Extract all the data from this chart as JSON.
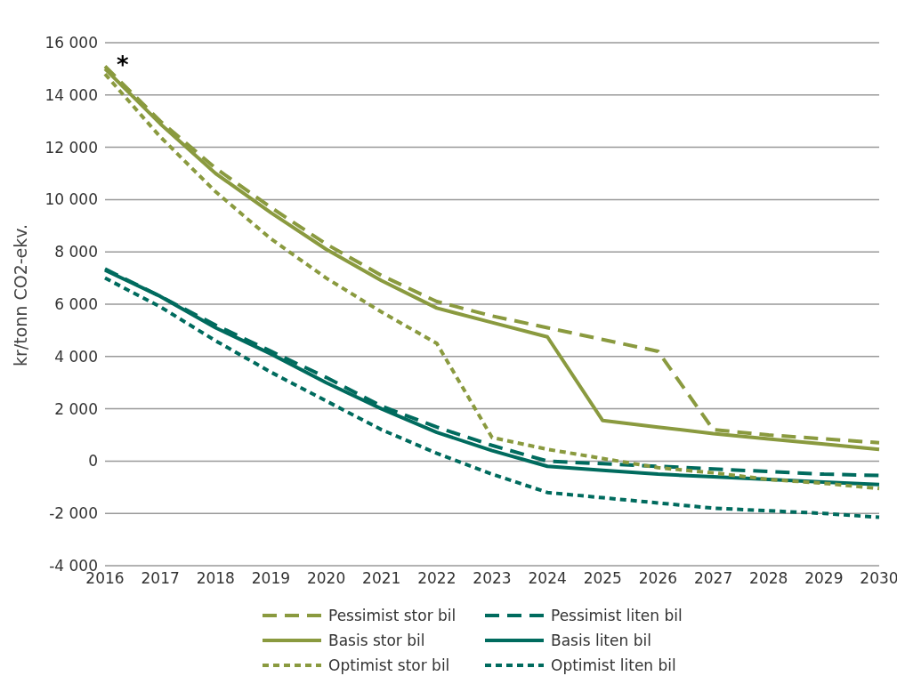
{
  "chart_data": {
    "type": "line",
    "ylabel": "kr/tonn CO2-ekv.",
    "categories": [
      "2016",
      "2017",
      "2018",
      "2019",
      "2020",
      "2021",
      "2022",
      "2023",
      "2024",
      "2025",
      "2026",
      "2027",
      "2028",
      "2029",
      "2030"
    ],
    "series": [
      {
        "name": "Pessimist stor bil",
        "color": "#8a9a3f",
        "line_style": "dashed",
        "values": [
          15100,
          13000,
          11200,
          9700,
          8300,
          7100,
          6100,
          5550,
          5100,
          4650,
          4200,
          1200,
          1000,
          850,
          700
        ]
      },
      {
        "name": "Pessimist liten bil",
        "color": "#006b5e",
        "line_style": "dashed",
        "values": [
          7350,
          6300,
          5200,
          4200,
          3200,
          2100,
          1300,
          600,
          0,
          -100,
          -200,
          -300,
          -400,
          -500,
          -550
        ]
      },
      {
        "name": "Basis stor bil",
        "color": "#8a9a3f",
        "line_style": "solid",
        "values": [
          15000,
          12900,
          11000,
          9500,
          8100,
          6900,
          5850,
          5300,
          4750,
          1550,
          1300,
          1050,
          850,
          650,
          450
        ]
      },
      {
        "name": "Basis liten bil",
        "color": "#006b5e",
        "line_style": "solid",
        "values": [
          7300,
          6300,
          5100,
          4100,
          3000,
          2000,
          1100,
          400,
          -200,
          -350,
          -500,
          -600,
          -700,
          -800,
          -900
        ]
      },
      {
        "name": "Optimist stor bil",
        "color": "#8a9a3f",
        "line_style": "dotted",
        "values": [
          14800,
          12400,
          10300,
          8500,
          7000,
          5700,
          4500,
          900,
          450,
          100,
          -250,
          -450,
          -700,
          -850,
          -1050
        ]
      },
      {
        "name": "Optimist liten bil",
        "color": "#006b5e",
        "line_style": "dotted",
        "values": [
          7000,
          5900,
          4600,
          3400,
          2300,
          1200,
          300,
          -500,
          -1200,
          -1400,
          -1600,
          -1800,
          -1900,
          -2000,
          -2150
        ]
      }
    ],
    "ylim": [
      -4000,
      16000
    ],
    "yticks": [
      {
        "value": -4000,
        "label": "-4 000"
      },
      {
        "value": -2000,
        "label": "-2 000"
      },
      0,
      {
        "value": 2000,
        "label": "2 000"
      },
      {
        "value": 4000,
        "label": "4 000"
      },
      {
        "value": 6000,
        "label": "6 000"
      },
      {
        "value": 8000,
        "label": "8 000"
      },
      {
        "value": 10000,
        "label": "10 000"
      },
      {
        "value": 12000,
        "label": "12 000"
      },
      {
        "value": 14000,
        "label": "14 000"
      },
      {
        "value": 16000,
        "label": "16 000"
      }
    ],
    "grid": "y",
    "legend": "bottom",
    "marker": "none",
    "annotations": [
      {
        "text": "*",
        "x": "2016",
        "y": 15100
      }
    ]
  }
}
